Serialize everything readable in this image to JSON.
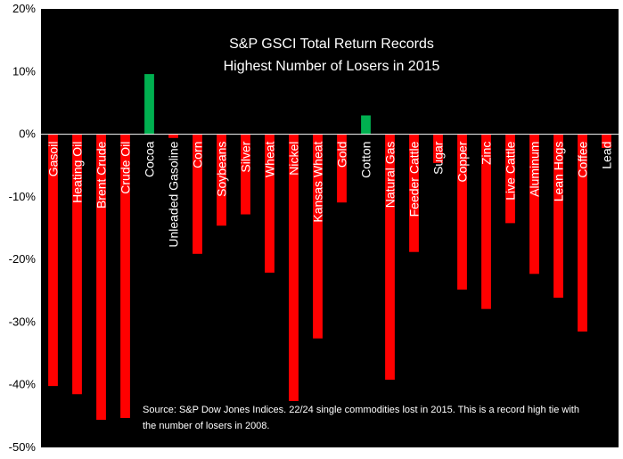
{
  "chart_data": {
    "type": "bar",
    "title": "S&P GSCI Total Return Records",
    "subtitle": "Highest Number of Losers in 2015",
    "xlabel": "",
    "ylabel": "",
    "ylim": [
      -50,
      20
    ],
    "y_ticks": [
      20,
      10,
      0,
      -10,
      -20,
      -30,
      -40,
      -50
    ],
    "y_tick_labels": [
      "20%",
      "10%",
      "0%",
      "-10%",
      "-20%",
      "-30%",
      "-40%",
      "-50%"
    ],
    "grid": false,
    "categories": [
      "Gasoil",
      "Heating Oil",
      "Brent Crude",
      "Crude Oil",
      "Cocoa",
      "Unleaded Gasoline",
      "Corn",
      "Soybeans",
      "Silver",
      "Wheat",
      "Nickel",
      "Kansas Wheat",
      "Gold",
      "Cotton",
      "Natural Gas",
      "Feeder Cattle",
      "Sugar",
      "Copper",
      "Zinc",
      "Live Cattle",
      "Aluminum",
      "Lean Hogs",
      "Coffee",
      "Lead"
    ],
    "values": [
      -40.2,
      -41.5,
      -45.6,
      -45.3,
      9.6,
      -0.6,
      -19.1,
      -14.6,
      -12.8,
      -22.1,
      -42.6,
      -32.6,
      -10.9,
      3.0,
      -39.2,
      -18.8,
      -4.6,
      -24.8,
      -27.9,
      -14.2,
      -22.3,
      -26.1,
      -31.5,
      -2.2
    ],
    "colors": {
      "positive": "#00b050",
      "negative": "#ff0000",
      "plot_background": "#000000",
      "text": "#ffffff"
    },
    "annotation": [
      "Source: S&P Dow Jones Indices. 22/24 single commodities lost in 2015. This is a record high tie with",
      "the number of losers in 2008."
    ]
  }
}
